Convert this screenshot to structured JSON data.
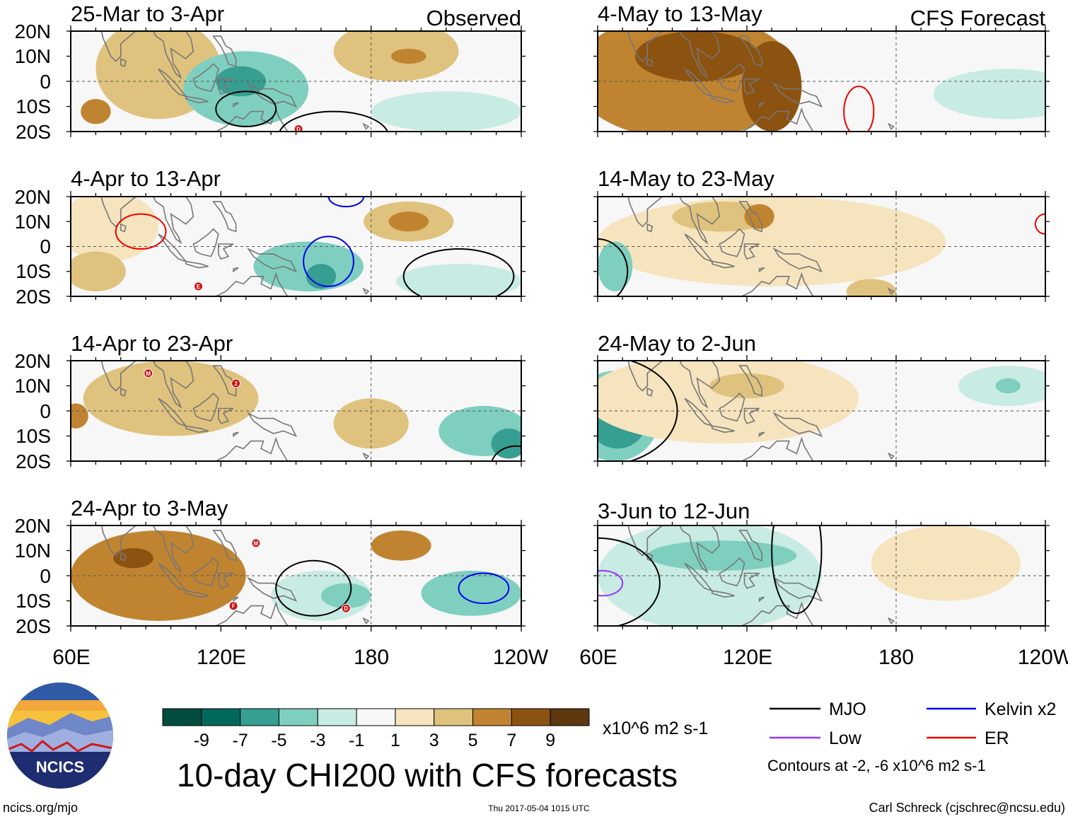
{
  "chart_data": {
    "type": "heatmap",
    "title": "10-day CHI200 with CFS forecasts",
    "column_labels": {
      "left": "Observed",
      "right": "CFS Forecast"
    },
    "panels": [
      {
        "id": "obs1",
        "column": "Observed",
        "period": "25-Mar to 3-Apr",
        "blobs": [
          {
            "lon": 95,
            "lat": 5,
            "value": 3,
            "rx": 25,
            "ry": 20
          },
          {
            "lon": 70,
            "lat": -12,
            "value": 5,
            "rx": 6,
            "ry": 5
          },
          {
            "lon": 130,
            "lat": -3,
            "value": -3,
            "rx": 25,
            "ry": 15
          },
          {
            "lon": 128,
            "lat": 0,
            "value": -5,
            "rx": 10,
            "ry": 6
          },
          {
            "lon": 190,
            "lat": 12,
            "value": 3,
            "rx": 25,
            "ry": 12
          },
          {
            "lon": 195,
            "lat": 10,
            "value": 5,
            "rx": 7,
            "ry": 3
          },
          {
            "lon": 210,
            "lat": -12,
            "value": -1,
            "rx": 30,
            "ry": 8
          }
        ],
        "contours": [
          {
            "type": "MJO",
            "lon": 130,
            "lat": -11,
            "rx": 12,
            "ry": 7
          },
          {
            "type": "MJO",
            "lon": 165,
            "lat": -22,
            "rx": 22,
            "ry": 10
          }
        ],
        "storms": [
          {
            "label": "D",
            "lon": 151,
            "lat": -19
          }
        ]
      },
      {
        "id": "obs2",
        "column": "Observed",
        "period": "4-Apr to 13-Apr",
        "blobs": [
          {
            "lon": 75,
            "lat": 8,
            "value": 1,
            "rx": 20,
            "ry": 14
          },
          {
            "lon": 70,
            "lat": -10,
            "value": 3,
            "rx": 12,
            "ry": 8
          },
          {
            "lon": 155,
            "lat": -8,
            "value": -3,
            "rx": 22,
            "ry": 10
          },
          {
            "lon": 160,
            "lat": -12,
            "value": -5,
            "rx": 6,
            "ry": 5
          },
          {
            "lon": 195,
            "lat": 10,
            "value": 3,
            "rx": 18,
            "ry": 8
          },
          {
            "lon": 195,
            "lat": 10,
            "value": 5,
            "rx": 8,
            "ry": 4
          },
          {
            "lon": 215,
            "lat": -14,
            "value": -1,
            "rx": 25,
            "ry": 7
          }
        ],
        "contours": [
          {
            "type": "ER",
            "lon": 88,
            "lat": 6,
            "rx": 10,
            "ry": 7
          },
          {
            "type": "Kelvin",
            "lon": 163,
            "lat": -6,
            "rx": 10,
            "ry": 10
          },
          {
            "type": "Kelvin",
            "lon": 170,
            "lat": 20,
            "rx": 7,
            "ry": 4
          },
          {
            "type": "MJO",
            "lon": 215,
            "lat": -12,
            "rx": 22,
            "ry": 11
          }
        ],
        "storms": [
          {
            "label": "E",
            "lon": 111,
            "lat": -16
          }
        ]
      },
      {
        "id": "obs3",
        "column": "Observed",
        "period": "14-Apr to 23-Apr",
        "blobs": [
          {
            "lon": 100,
            "lat": 5,
            "value": 3,
            "rx": 35,
            "ry": 15
          },
          {
            "lon": 62,
            "lat": -2,
            "value": 5,
            "rx": 5,
            "ry": 5
          },
          {
            "lon": 180,
            "lat": -5,
            "value": 3,
            "rx": 15,
            "ry": 10
          },
          {
            "lon": 225,
            "lat": -8,
            "value": -3,
            "rx": 18,
            "ry": 10
          },
          {
            "lon": 235,
            "lat": -13,
            "value": -5,
            "rx": 7,
            "ry": 6
          }
        ],
        "contours": [
          {
            "type": "MJO",
            "lon": 238,
            "lat": -22,
            "rx": 10,
            "ry": 8
          }
        ],
        "storms": [
          {
            "label": "M",
            "lon": 91,
            "lat": 15
          },
          {
            "label": "2",
            "lon": 126,
            "lat": 11
          }
        ]
      },
      {
        "id": "obs4",
        "column": "Observed",
        "period": "24-Apr to 3-May",
        "blobs": [
          {
            "lon": 95,
            "lat": 0,
            "value": 5,
            "rx": 35,
            "ry": 18
          },
          {
            "lon": 85,
            "lat": 7,
            "value": 7,
            "rx": 8,
            "ry": 4
          },
          {
            "lon": 192,
            "lat": 12,
            "value": 5,
            "rx": 12,
            "ry": 6
          },
          {
            "lon": 160,
            "lat": -8,
            "value": -1,
            "rx": 20,
            "ry": 10
          },
          {
            "lon": 170,
            "lat": -8,
            "value": -3,
            "rx": 10,
            "ry": 5
          },
          {
            "lon": 220,
            "lat": -7,
            "value": -3,
            "rx": 20,
            "ry": 9
          }
        ],
        "contours": [
          {
            "type": "MJO",
            "lon": 157,
            "lat": -5,
            "rx": 15,
            "ry": 11
          },
          {
            "type": "Kelvin",
            "lon": 225,
            "lat": -5,
            "rx": 10,
            "ry": 6
          }
        ],
        "storms": [
          {
            "label": "M",
            "lon": 134,
            "lat": 13
          },
          {
            "label": "F",
            "lon": 125,
            "lat": -12
          },
          {
            "label": "D",
            "lon": 170,
            "lat": -13
          }
        ]
      },
      {
        "id": "fc1",
        "column": "CFS Forecast",
        "period": "4-May to 13-May",
        "blobs": [
          {
            "lon": 95,
            "lat": 2,
            "value": 5,
            "rx": 45,
            "ry": 25
          },
          {
            "lon": 100,
            "lat": 10,
            "value": 7,
            "rx": 25,
            "ry": 10
          },
          {
            "lon": 130,
            "lat": -2,
            "value": 7,
            "rx": 12,
            "ry": 18
          },
          {
            "lon": 225,
            "lat": -5,
            "value": -1,
            "rx": 30,
            "ry": 10
          }
        ],
        "contours": [
          {
            "type": "ER",
            "lon": 165,
            "lat": -12,
            "rx": 6,
            "ry": 10
          }
        ],
        "storms": []
      },
      {
        "id": "fc2",
        "column": "CFS Forecast",
        "period": "14-May to 23-May",
        "blobs": [
          {
            "lon": 130,
            "lat": 2,
            "value": 1,
            "rx": 70,
            "ry": 18
          },
          {
            "lon": 110,
            "lat": 12,
            "value": 3,
            "rx": 20,
            "ry": 6
          },
          {
            "lon": 125,
            "lat": 12,
            "value": 5,
            "rx": 6,
            "ry": 5
          },
          {
            "lon": 67,
            "lat": -8,
            "value": -3,
            "rx": 7,
            "ry": 10
          },
          {
            "lon": 170,
            "lat": -18,
            "value": 3,
            "rx": 10,
            "ry": 5
          }
        ],
        "contours": [
          {
            "type": "MJO",
            "lon": 60,
            "lat": -10,
            "rx": 12,
            "ry": 13
          },
          {
            "type": "ER",
            "lon": 240,
            "lat": 9,
            "rx": 4,
            "ry": 4
          }
        ],
        "storms": []
      },
      {
        "id": "fc3",
        "column": "CFS Forecast",
        "period": "24-May to 2-Jun",
        "blobs": [
          {
            "lon": 67,
            "lat": -2,
            "value": -3,
            "rx": 18,
            "ry": 18
          },
          {
            "lon": 68,
            "lat": -3,
            "value": -5,
            "rx": 12,
            "ry": 12
          },
          {
            "lon": 110,
            "lat": 5,
            "value": 1,
            "rx": 55,
            "ry": 18
          },
          {
            "lon": 120,
            "lat": 10,
            "value": 3,
            "rx": 15,
            "ry": 5
          },
          {
            "lon": 225,
            "lat": 10,
            "value": -1,
            "rx": 20,
            "ry": 8
          },
          {
            "lon": 225,
            "lat": 10,
            "value": -3,
            "rx": 5,
            "ry": 3
          }
        ],
        "contours": [
          {
            "type": "MJO",
            "lon": 60,
            "lat": 0,
            "rx": 32,
            "ry": 22
          }
        ],
        "storms": []
      },
      {
        "id": "fc4",
        "column": "CFS Forecast",
        "period": "3-Jun to 12-Jun",
        "blobs": [
          {
            "lon": 105,
            "lat": 0,
            "value": -1,
            "rx": 45,
            "ry": 22
          },
          {
            "lon": 110,
            "lat": 8,
            "value": -3,
            "rx": 30,
            "ry": 6
          },
          {
            "lon": 200,
            "lat": 5,
            "value": 1,
            "rx": 30,
            "ry": 15
          }
        ],
        "contours": [
          {
            "type": "Low",
            "lon": 62,
            "lat": -3,
            "rx": 8,
            "ry": 5
          },
          {
            "type": "MJO",
            "lon": 60,
            "lat": -3,
            "rx": 25,
            "ry": 18
          },
          {
            "type": "MJO",
            "lon": 140,
            "lat": 10,
            "rx": 10,
            "ry": 25
          }
        ],
        "storms": []
      }
    ],
    "lon_range": [
      60,
      240
    ],
    "lat_range": [
      -20,
      20
    ],
    "y_ticks": [
      "20N",
      "10N",
      "0",
      "10S",
      "20S"
    ],
    "y_tick_values": [
      20,
      10,
      0,
      -10,
      -20
    ],
    "x_ticks": [
      "60E",
      "120E",
      "180",
      "120W"
    ],
    "x_tick_values": [
      60,
      120,
      180,
      240
    ],
    "colorbar": {
      "labels": [
        "-9",
        "-7",
        "-5",
        "-3",
        "-1",
        "1",
        "3",
        "5",
        "7",
        "9"
      ],
      "colors": [
        "#004d40",
        "#00695c",
        "#379e92",
        "#7fcfc0",
        "#c8ebe3",
        "#f7f7f7",
        "#f5e4bd",
        "#dfc27d",
        "#c08431",
        "#8c520f",
        "#5f3810"
      ],
      "units": "x10^6 m2 s-1"
    },
    "legend": [
      {
        "name": "MJO",
        "color": "#000000"
      },
      {
        "name": "Kelvin x2",
        "color": "#0000ee"
      },
      {
        "name": "Low",
        "color": "#9933ff"
      },
      {
        "name": "ER",
        "color": "#ee0000"
      }
    ],
    "contour_note": "Contours at -2, -6 x10^6 m2 s-1"
  },
  "logo": {
    "text": "NCICS"
  },
  "footer": {
    "url": "ncics.org/mjo",
    "timestamp": "Thu 2017-05-04 1015 UTC",
    "author": "Carl Schreck (cjschrec@ncsu.edu)"
  },
  "colors": {
    "storm_badge": "#cc1111"
  }
}
